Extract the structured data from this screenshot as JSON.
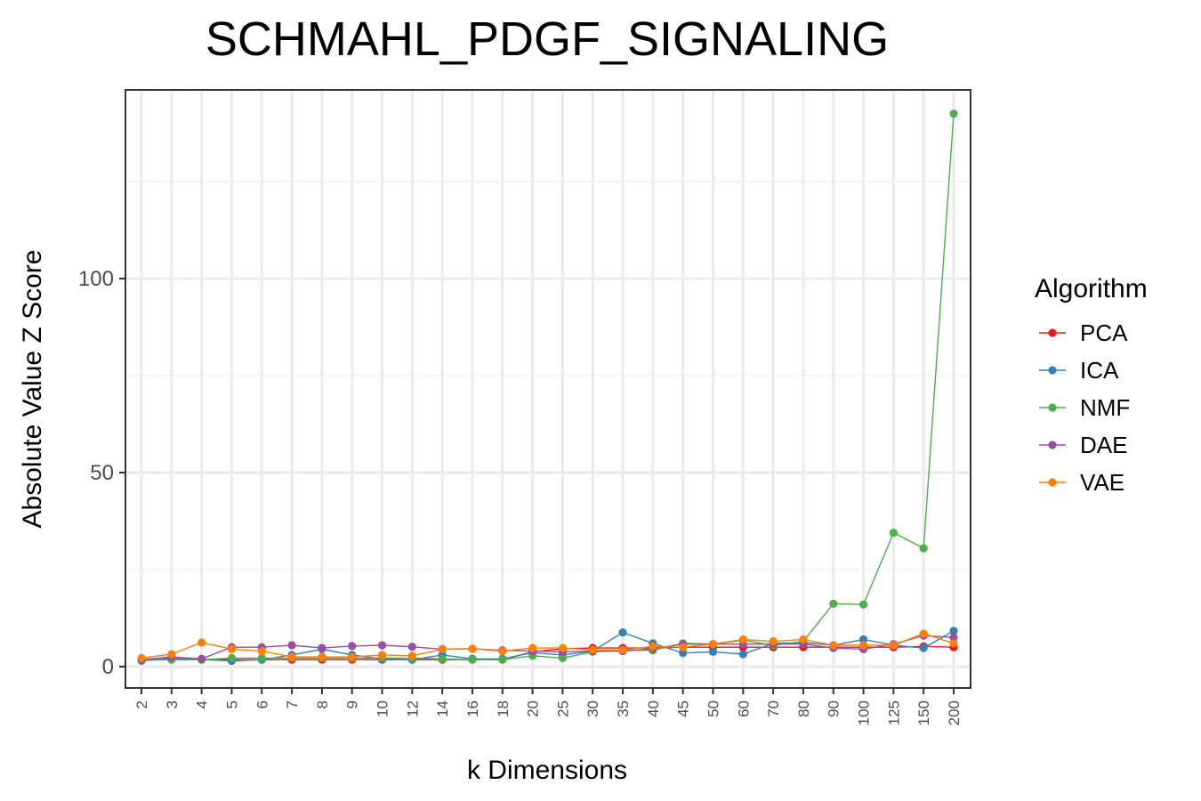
{
  "chart_data": {
    "type": "line",
    "title": "SCHMAHL_PDGF_SIGNALING",
    "xlabel": "k Dimensions",
    "ylabel": "Absolute Value Z Score",
    "categories": [
      "2",
      "3",
      "4",
      "5",
      "6",
      "7",
      "8",
      "9",
      "10",
      "12",
      "14",
      "16",
      "18",
      "20",
      "25",
      "30",
      "35",
      "40",
      "45",
      "50",
      "60",
      "70",
      "80",
      "90",
      "100",
      "125",
      "150",
      "200"
    ],
    "yticks": [
      0,
      50,
      100
    ],
    "ylim": [
      -6,
      149
    ],
    "grid": true,
    "legend": {
      "title": "Algorithm",
      "placement": "right"
    },
    "series": [
      {
        "name": "PCA",
        "color": "#e41a1c",
        "values": [
          1.8,
          1.8,
          1.8,
          1.8,
          1.8,
          1.8,
          1.8,
          1.8,
          1.8,
          1.8,
          1.8,
          1.8,
          1.8,
          3.8,
          4.6,
          4.8,
          4.8,
          4.8,
          5.0,
          5.0,
          5.0,
          5.0,
          5.0,
          5.0,
          5.0,
          5.0,
          5.2,
          5.0
        ]
      },
      {
        "name": "ICA",
        "color": "#377eb8",
        "values": [
          1.5,
          2.2,
          1.8,
          1.5,
          1.8,
          3.0,
          4.5,
          3.0,
          2.0,
          1.8,
          3.0,
          2.0,
          2.0,
          3.6,
          3.0,
          4.0,
          8.8,
          6.0,
          3.5,
          3.8,
          3.2,
          6.0,
          6.2,
          5.5,
          7.0,
          5.5,
          4.8,
          9.2
        ]
      },
      {
        "name": "NMF",
        "color": "#4daf4a",
        "values": [
          1.6,
          1.8,
          1.8,
          2.2,
          2.2,
          2.2,
          2.2,
          2.2,
          2.2,
          2.2,
          2.0,
          1.8,
          1.8,
          2.8,
          2.2,
          3.8,
          4.2,
          4.2,
          6.0,
          5.8,
          6.8,
          5.5,
          6.5,
          16.2,
          16.0,
          34.5,
          30.5,
          142.5
        ]
      },
      {
        "name": "DAE",
        "color": "#984ea3",
        "values": [
          1.8,
          2.5,
          2.0,
          5.0,
          5.0,
          5.5,
          4.8,
          5.3,
          5.5,
          5.1,
          4.5,
          4.6,
          4.2,
          4.0,
          3.8,
          4.0,
          4.0,
          4.6,
          5.8,
          5.8,
          5.8,
          5.8,
          5.8,
          4.8,
          4.5,
          5.8,
          8.0,
          7.5
        ]
      },
      {
        "name": "VAE",
        "color": "#ff7f00",
        "values": [
          2.2,
          3.2,
          6.2,
          4.5,
          4.0,
          2.5,
          2.5,
          2.5,
          3.0,
          2.8,
          4.5,
          4.6,
          4.0,
          4.8,
          4.8,
          4.3,
          4.3,
          5.2,
          5.0,
          5.8,
          7.0,
          6.5,
          7.0,
          5.5,
          5.5,
          5.5,
          8.5,
          6.0
        ]
      }
    ]
  }
}
